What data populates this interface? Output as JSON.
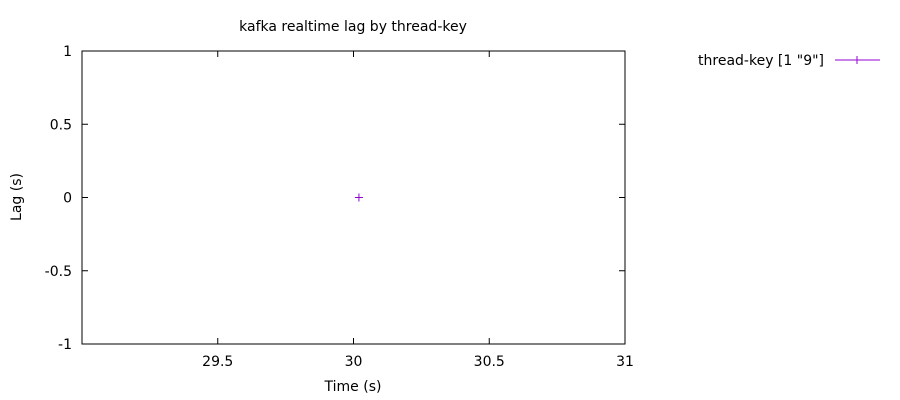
{
  "chart_data": {
    "type": "scatter",
    "title": "kafka realtime lag by thread-key",
    "xlabel": "Time (s)",
    "ylabel": "Lag (s)",
    "xlim": [
      29.0,
      31.0
    ],
    "ylim": [
      -1,
      1
    ],
    "xticks": [
      29.5,
      30,
      30.5,
      31
    ],
    "xtick_labels": [
      "29.5",
      "30",
      "30.5",
      "31"
    ],
    "yticks": [
      1,
      0.5,
      0,
      -0.5,
      -1
    ],
    "ytick_labels": [
      "1",
      "0.5",
      "0",
      "-0.5",
      "-1"
    ],
    "grid": false,
    "legend_position": "top-right outside",
    "series": [
      {
        "name": "thread-key [1 \"9\"]",
        "color": "#9400d3",
        "marker": "plus",
        "x": [
          30.02
        ],
        "y": [
          0
        ]
      }
    ]
  }
}
